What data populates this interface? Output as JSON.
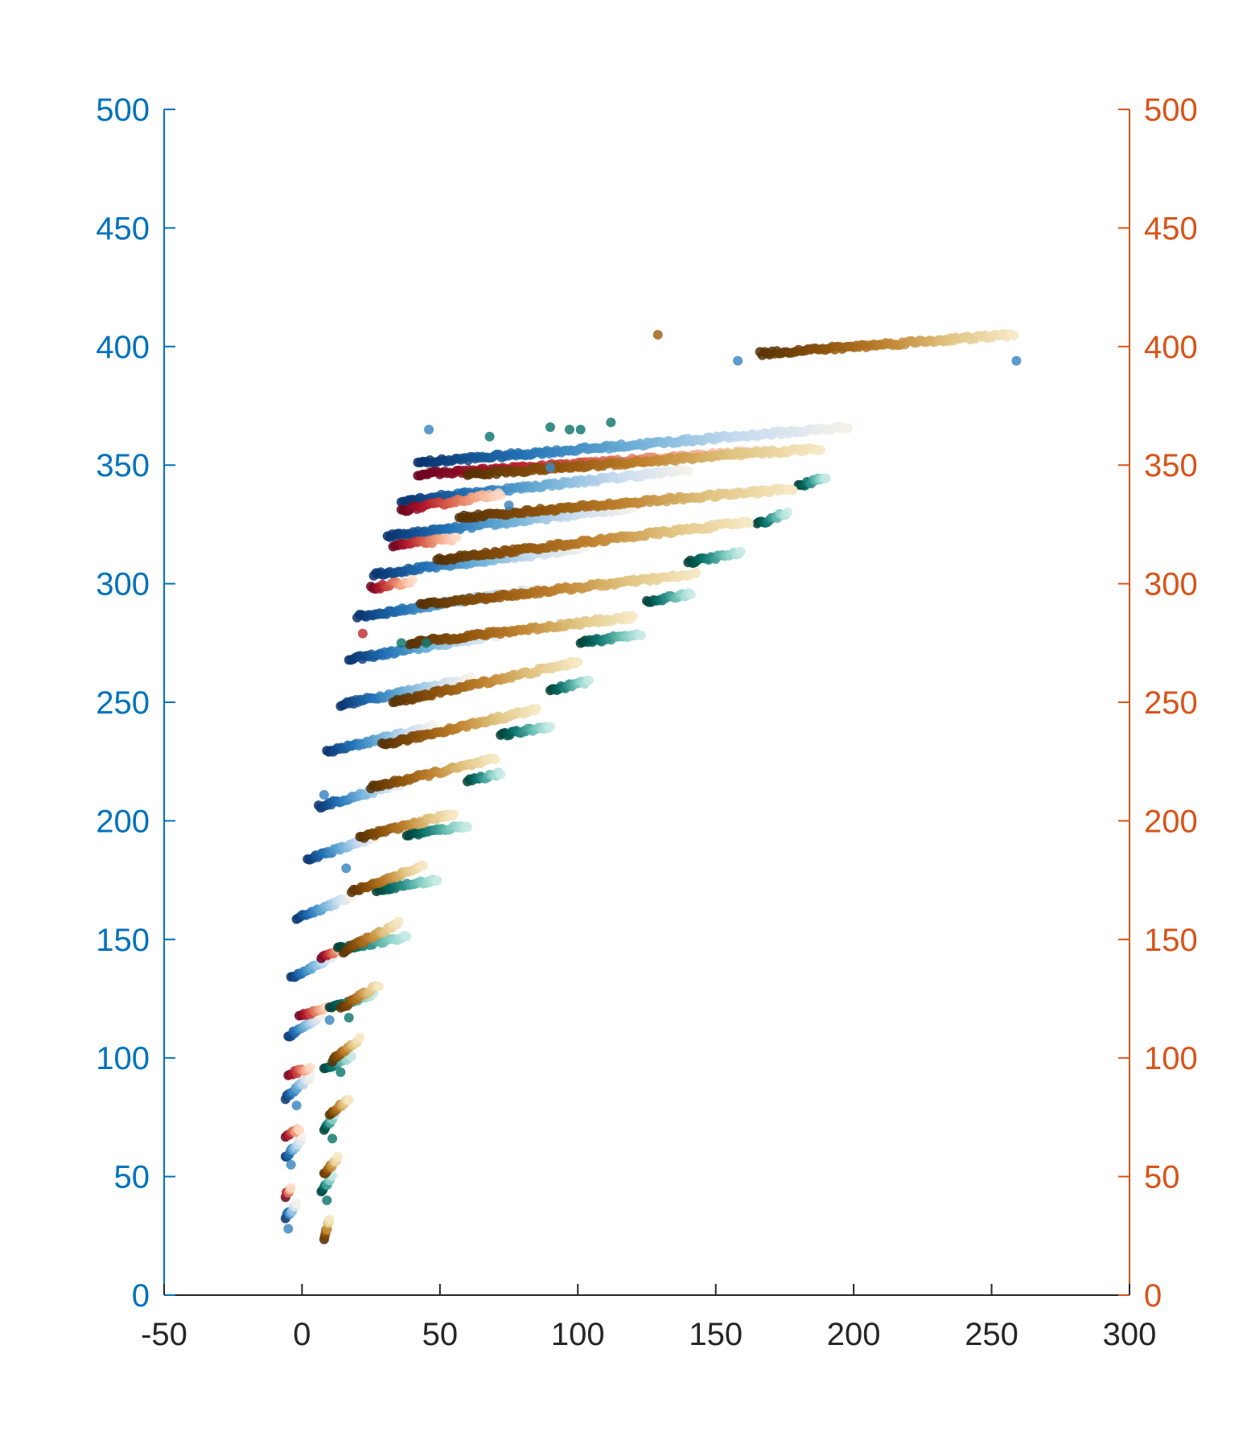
{
  "chart_data": {
    "type": "scatter",
    "title": "",
    "xlabel": "",
    "ylabel": "",
    "xlim": [
      -50,
      300
    ],
    "ylim": [
      0,
      500
    ],
    "y2lim": [
      0,
      500
    ],
    "x_ticks": [
      "-50",
      "0",
      "50",
      "100",
      "150",
      "200",
      "250",
      "300"
    ],
    "y_ticks": [
      "0",
      "50",
      "100",
      "150",
      "200",
      "250",
      "300",
      "350",
      "400",
      "450",
      "500"
    ],
    "y2_ticks": [
      "0",
      "50",
      "100",
      "150",
      "200",
      "250",
      "300",
      "350",
      "400",
      "450",
      "500"
    ],
    "grid": false,
    "legend": "none",
    "colors": {
      "left_axis": "#0072BD",
      "right_axis": "#D95319",
      "x_axis": "#262626"
    },
    "series": [
      {
        "axis": "left",
        "palette": "blue",
        "gradient": [
          "#08306b",
          "#2171b5",
          "#6baed6",
          "#c6dbef",
          "#f4f1ea"
        ],
        "segments": [
          {
            "x": [
              -6,
              -2
            ],
            "y": [
              33,
              38
            ]
          },
          {
            "x": [
              -6,
              0
            ],
            "y": [
              58,
              66
            ]
          },
          {
            "x": [
              -6,
              3
            ],
            "y": [
              83,
              92
            ]
          },
          {
            "x": [
              -5,
              7
            ],
            "y": [
              109,
              118
            ]
          },
          {
            "x": [
              -4,
              12
            ],
            "y": [
              134,
              143
            ]
          },
          {
            "x": [
              -2,
              18
            ],
            "y": [
              159,
              168
            ]
          },
          {
            "x": [
              2,
              27
            ],
            "y": [
              184,
              193
            ]
          },
          {
            "x": [
              6,
              37
            ],
            "y": [
              206,
              216
            ]
          },
          {
            "x": [
              9,
              48
            ],
            "y": [
              229,
              240
            ]
          },
          {
            "x": [
              14,
              61
            ],
            "y": [
              249,
              260
            ]
          },
          {
            "x": [
              17,
              74
            ],
            "y": [
              268,
              279
            ]
          },
          {
            "x": [
              20,
              87
            ],
            "y": [
              286,
              298
            ]
          },
          {
            "x": [
              26,
              103
            ],
            "y": [
              304,
              315
            ]
          },
          {
            "x": [
              31,
              120
            ],
            "y": [
              320,
              332
            ]
          },
          {
            "x": [
              36,
              140
            ],
            "y": [
              335,
              348
            ]
          },
          {
            "x": [
              42,
              198
            ],
            "y": [
              351,
              366
            ]
          }
        ]
      },
      {
        "axis": "left",
        "palette": "red",
        "gradient": [
          "#67001f",
          "#b2182b",
          "#d6604d",
          "#f4a582",
          "#fddbc7"
        ],
        "segments": [
          {
            "x": [
              -6,
              -4
            ],
            "y": [
              42,
              45
            ]
          },
          {
            "x": [
              -6,
              -1
            ],
            "y": [
              67,
              70
            ]
          },
          {
            "x": [
              -5,
              3
            ],
            "y": [
              93,
              96
            ]
          },
          {
            "x": [
              -1,
              9
            ],
            "y": [
              118,
              121
            ]
          },
          {
            "x": [
              7,
              15
            ],
            "y": [
              142,
              146
            ]
          },
          {
            "x": [
              25,
              40
            ],
            "y": [
              298,
              301
            ]
          },
          {
            "x": [
              33,
              56
            ],
            "y": [
              316,
              319
            ]
          },
          {
            "x": [
              36,
              72
            ],
            "y": [
              331,
              338
            ]
          },
          {
            "x": [
              42,
              170
            ],
            "y": [
              346,
              356
            ]
          }
        ]
      },
      {
        "axis": "right",
        "palette": "teal",
        "gradient": [
          "#003c30",
          "#01665e",
          "#35978f",
          "#80cdc1",
          "#c7eae5"
        ],
        "segments": [
          {
            "x": [
              7,
              11
            ],
            "y": [
              44,
              50
            ]
          },
          {
            "x": [
              8,
              12
            ],
            "y": [
              70,
              76
            ]
          },
          {
            "x": [
              8,
              18
            ],
            "y": [
              95,
              101
            ]
          },
          {
            "x": [
              10,
              26
            ],
            "y": [
              121,
              127
            ]
          },
          {
            "x": [
              13,
              38
            ],
            "y": [
              146,
              151
            ]
          },
          {
            "x": [
              27,
              49
            ],
            "y": [
              171,
              175
            ]
          },
          {
            "x": [
              38,
              60
            ],
            "y": [
              194,
              198
            ]
          },
          {
            "x": [
              60,
              72
            ],
            "y": [
              217,
              220
            ]
          },
          {
            "x": [
              72,
              90
            ],
            "y": [
              236,
              240
            ]
          },
          {
            "x": [
              90,
              104
            ],
            "y": [
              255,
              259
            ]
          },
          {
            "x": [
              101,
              123
            ],
            "y": [
              275,
              279
            ]
          },
          {
            "x": [
              125,
              141
            ],
            "y": [
              292,
              296
            ]
          },
          {
            "x": [
              140,
              159
            ],
            "y": [
              309,
              313
            ]
          },
          {
            "x": [
              165,
              176
            ],
            "y": [
              325,
              330
            ]
          },
          {
            "x": [
              180,
              190
            ],
            "y": [
              341,
              345
            ]
          }
        ]
      },
      {
        "axis": "right",
        "palette": "brown",
        "gradient": [
          "#543005",
          "#8c510a",
          "#bf812d",
          "#dfc27d",
          "#f6e8c3"
        ],
        "segments": [
          {
            "x": [
              8,
              10
            ],
            "y": [
              24,
              32
            ]
          },
          {
            "x": [
              8,
              13
            ],
            "y": [
              51,
              58
            ]
          },
          {
            "x": [
              10,
              17
            ],
            "y": [
              76,
              83
            ]
          },
          {
            "x": [
              11,
              21
            ],
            "y": [
              99,
              108
            ]
          },
          {
            "x": [
              14,
              28
            ],
            "y": [
              121,
              131
            ]
          },
          {
            "x": [
              15,
              35
            ],
            "y": [
              145,
              157
            ]
          },
          {
            "x": [
              18,
              44
            ],
            "y": [
              170,
              181
            ]
          },
          {
            "x": [
              21,
              55
            ],
            "y": [
              193,
              203
            ]
          },
          {
            "x": [
              25,
              70
            ],
            "y": [
              214,
              226
            ]
          },
          {
            "x": [
              29,
              85
            ],
            "y": [
              232,
              247
            ]
          },
          {
            "x": [
              33,
              100
            ],
            "y": [
              250,
              267
            ]
          },
          {
            "x": [
              39,
              120
            ],
            "y": [
              275,
              286
            ]
          },
          {
            "x": [
              43,
              143
            ],
            "y": [
              291,
              304
            ]
          },
          {
            "x": [
              49,
              162
            ],
            "y": [
              310,
              326
            ]
          },
          {
            "x": [
              57,
              178
            ],
            "y": [
              328,
              340
            ]
          },
          {
            "x": [
              60,
              188
            ],
            "y": [
              346,
              357
            ]
          },
          {
            "x": [
              166,
              258
            ],
            "y": [
              397,
              405
            ]
          }
        ]
      }
    ],
    "outliers": [
      {
        "x": 129,
        "y": 405,
        "palette": "brown"
      },
      {
        "x": 158,
        "y": 394,
        "palette": "blue"
      },
      {
        "x": 259,
        "y": 394,
        "palette": "blue"
      },
      {
        "x": 46,
        "y": 365,
        "palette": "blue"
      },
      {
        "x": 68,
        "y": 362,
        "palette": "teal"
      },
      {
        "x": 90,
        "y": 366,
        "palette": "teal"
      },
      {
        "x": 97,
        "y": 365,
        "palette": "teal"
      },
      {
        "x": 101,
        "y": 365,
        "palette": "teal"
      },
      {
        "x": 112,
        "y": 368,
        "palette": "teal"
      },
      {
        "x": 90,
        "y": 349,
        "palette": "blue"
      },
      {
        "x": 75,
        "y": 333,
        "palette": "blue"
      },
      {
        "x": 22,
        "y": 279,
        "palette": "red"
      },
      {
        "x": 36,
        "y": 275,
        "palette": "teal"
      },
      {
        "x": 45,
        "y": 275,
        "palette": "teal"
      },
      {
        "x": 8,
        "y": 211,
        "palette": "blue"
      },
      {
        "x": 16,
        "y": 180,
        "palette": "blue"
      },
      {
        "x": 10,
        "y": 116,
        "palette": "blue"
      },
      {
        "x": 17,
        "y": 117,
        "palette": "teal"
      },
      {
        "x": 14,
        "y": 94,
        "palette": "teal"
      },
      {
        "x": -2,
        "y": 80,
        "palette": "blue"
      },
      {
        "x": 11,
        "y": 66,
        "palette": "teal"
      },
      {
        "x": -4,
        "y": 55,
        "palette": "blue"
      },
      {
        "x": 9,
        "y": 40,
        "palette": "teal"
      },
      {
        "x": -5,
        "y": 28,
        "palette": "blue"
      }
    ]
  }
}
